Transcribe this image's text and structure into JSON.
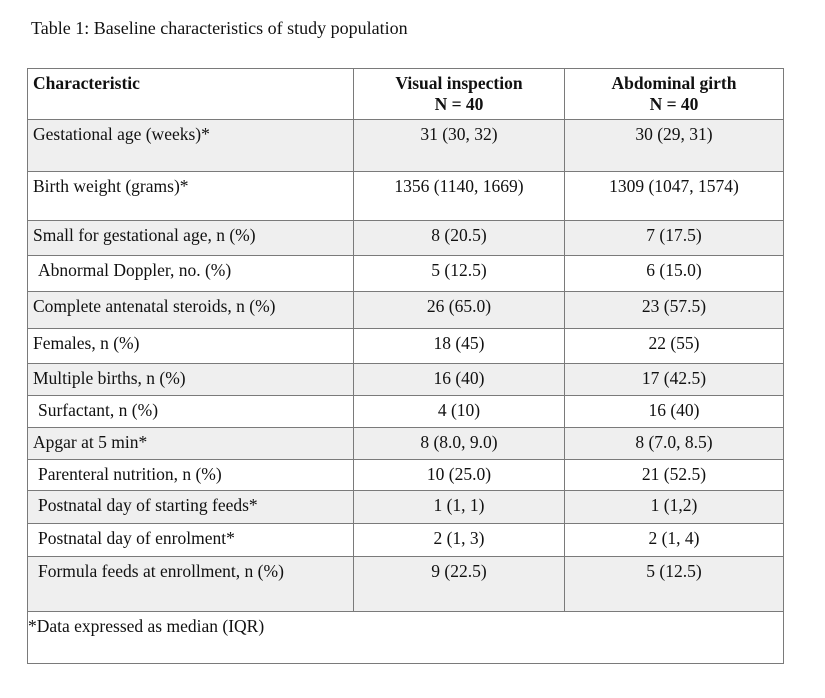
{
  "caption": "Table 1: Baseline characteristics of study population",
  "table": {
    "headers": {
      "characteristic": "Characteristic",
      "visual": {
        "line1": "Visual inspection",
        "line2": "N = 40"
      },
      "girth": {
        "line1": "Abdominal girth",
        "line2": "N = 40"
      }
    },
    "rows": [
      {
        "label": "Gestational age (weeks)*",
        "visual": "31 (30, 32)",
        "girth": "30 (29, 31)"
      },
      {
        "label": "Birth weight (grams)*",
        "visual": "1356 (1140, 1669)",
        "girth": "1309 (1047, 1574)"
      },
      {
        "label": "Small for gestational age, n (%)",
        "visual": "8 (20.5)",
        "girth": "7 (17.5)"
      },
      {
        "label": "Abnormal Doppler, no. (%)",
        "visual": "5 (12.5)",
        "girth": "6 (15.0)"
      },
      {
        "label": "Complete antenatal steroids, n (%)",
        "visual": "26 (65.0)",
        "girth": "23 (57.5)"
      },
      {
        "label": "Females, n (%)",
        "visual": "18 (45)",
        "girth": "22 (55)"
      },
      {
        "label": "Multiple births, n (%)",
        "visual": "16 (40)",
        "girth": "17 (42.5)"
      },
      {
        "label": "Surfactant, n (%)",
        "visual": "4 (10)",
        "girth": "16 (40)"
      },
      {
        "label": "Apgar at 5 min*",
        "visual": "8 (8.0, 9.0)",
        "girth": "8 (7.0, 8.5)"
      },
      {
        "label": "Parenteral nutrition, n (%)",
        "visual": "10 (25.0)",
        "girth": "21 (52.5)"
      },
      {
        "label": "Postnatal day of starting feeds*",
        "visual": "1 (1, 1)",
        "girth": "1 (1,2)"
      },
      {
        "label": "Postnatal day of enrolment*",
        "visual": "2 (1, 3)",
        "girth": "2 (1, 4)"
      },
      {
        "label": "Formula feeds at enrollment, n (%)",
        "visual": "9 (22.5)",
        "girth": "5 (12.5)"
      }
    ],
    "footnote": "*Data expressed as median (IQR)"
  }
}
